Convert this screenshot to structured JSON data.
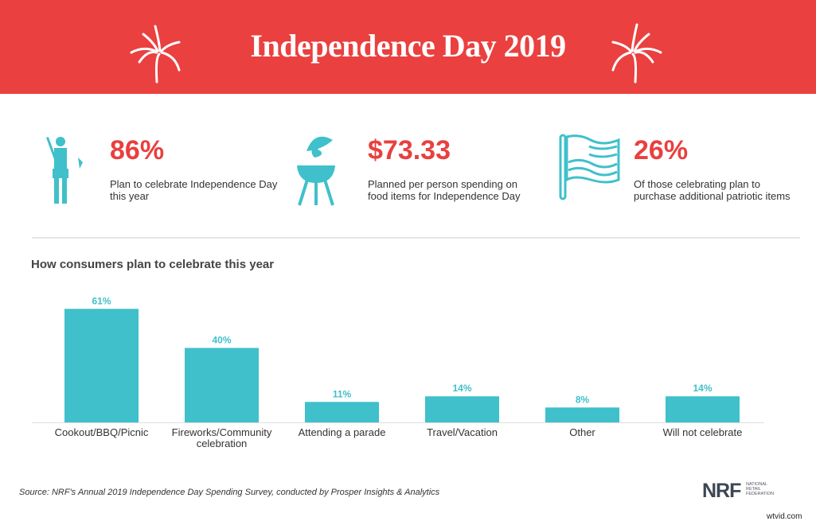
{
  "header": {
    "title": "Independence Day 2019",
    "icons": [
      "fireworks-icon",
      "fireworks-icon"
    ]
  },
  "stats": [
    {
      "value": "86%",
      "description": "Plan to celebrate Independence Day this year",
      "icon": "drummer-icon"
    },
    {
      "value": "$73.33",
      "description": "Planned per person spending on food items for Independence Day",
      "icon": "grill-icon"
    },
    {
      "value": "26%",
      "description": "Of those celebrating plan to purchase additional patriotic items",
      "icon": "flag-icon"
    }
  ],
  "colors": {
    "header": "#ea403f",
    "accent": "#e8403f",
    "bar": "#3fc0cb"
  },
  "chart_data": {
    "type": "bar",
    "title": "How consumers plan to celebrate this year",
    "categories": [
      "Cookout/BBQ/Picnic",
      "Fireworks/Community celebration",
      "Attending a parade",
      "Travel/Vacation",
      "Other",
      "Will not celebrate"
    ],
    "values": [
      61,
      40,
      11,
      14,
      8,
      14
    ],
    "data_labels": [
      "61%",
      "40%",
      "11%",
      "14%",
      "8%",
      "14%"
    ],
    "unit": "%",
    "ylim": [
      0,
      100
    ],
    "grid": false,
    "legend": "none"
  },
  "footer": {
    "source": "Source: NRF's Annual 2019 Independence Day Spending Survey, conducted by Prosper Insights & Analytics",
    "logo": "NRF",
    "logo_sub": "NATIONAL RETAIL FEDERATION",
    "watermark": "wtvid.com"
  }
}
